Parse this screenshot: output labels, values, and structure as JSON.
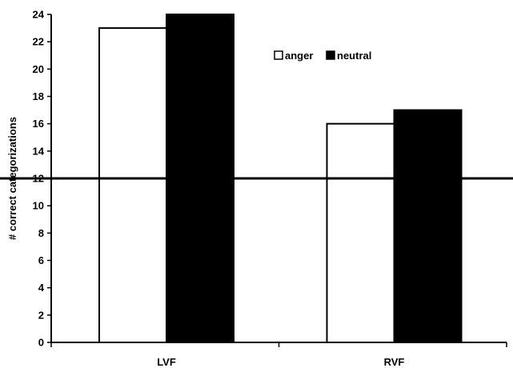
{
  "chart_data": {
    "type": "bar",
    "categories": [
      "LVF",
      "RVF"
    ],
    "series": [
      {
        "name": "anger",
        "values": [
          23,
          16
        ],
        "color": "#ffffff"
      },
      {
        "name": "neutral",
        "values": [
          24,
          17
        ],
        "color": "#000000"
      }
    ],
    "ylabel": "# correct categorizations",
    "xlabel": "",
    "ylim": [
      0,
      24
    ],
    "yticks": [
      0,
      2,
      4,
      6,
      8,
      10,
      12,
      14,
      16,
      18,
      20,
      22,
      24
    ],
    "reference_line": 12,
    "legend_position": "top-right",
    "grid": false
  }
}
